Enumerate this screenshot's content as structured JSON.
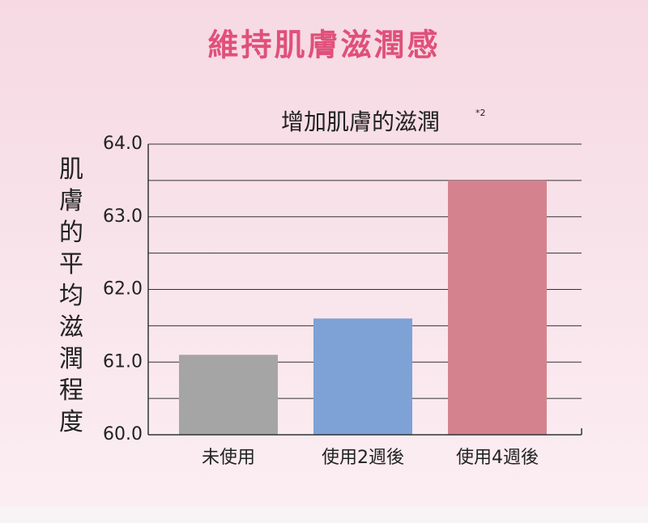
{
  "chart_data": {
    "type": "bar",
    "heading": "維持肌膚滋潤感",
    "title": "增加肌膚的滋潤",
    "title_note": "*2",
    "y_label": "肌膚的平均滋潤程度",
    "categories": [
      "未使用",
      "使用2週後",
      "使用4週後"
    ],
    "values": [
      61.1,
      61.6,
      63.5
    ],
    "colors": [
      "#a5a5a5",
      "#7ea1d6",
      "#d4838e"
    ],
    "ylim": [
      60,
      64
    ],
    "yticks": [
      {
        "value": 60,
        "label": "60.0"
      },
      {
        "value": 61,
        "label": "61.0"
      },
      {
        "value": 62,
        "label": "62.0"
      },
      {
        "value": 63,
        "label": "63.0"
      },
      {
        "value": 64,
        "label": "64.0"
      }
    ],
    "minor_yticks": [
      60.5,
      61.5,
      62.5,
      63.5
    ],
    "grid": true
  }
}
